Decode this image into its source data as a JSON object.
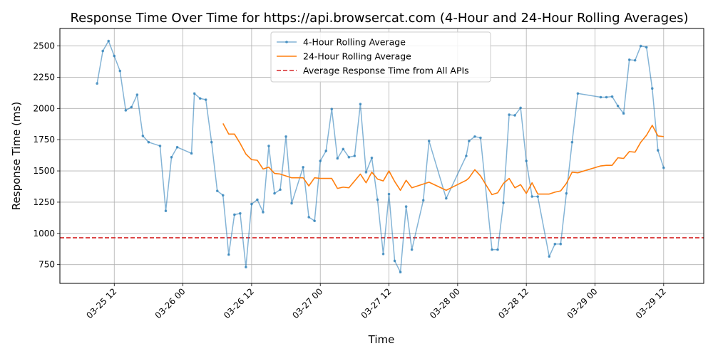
{
  "chart_data": {
    "type": "line",
    "title": "Response Time Over Time for https://api.browsercat.com (4-Hour and 24-Hour Rolling Averages)",
    "xlabel": "Time",
    "ylabel": "Response Time (ms)",
    "x_axis": {
      "type": "datetime",
      "range": [
        "2025-03-25T02:30",
        "2025-03-29T19:00"
      ],
      "ticks": [
        {
          "value": "2025-03-25T12:00",
          "label": "03-25 12"
        },
        {
          "value": "2025-03-26T00:00",
          "label": "03-26 00"
        },
        {
          "value": "2025-03-26T12:00",
          "label": "03-26 12"
        },
        {
          "value": "2025-03-27T00:00",
          "label": "03-27 00"
        },
        {
          "value": "2025-03-27T12:00",
          "label": "03-27 12"
        },
        {
          "value": "2025-03-28T00:00",
          "label": "03-28 00"
        },
        {
          "value": "2025-03-28T12:00",
          "label": "03-28 12"
        },
        {
          "value": "2025-03-29T00:00",
          "label": "03-29 00"
        },
        {
          "value": "2025-03-29T12:00",
          "label": "03-29 12"
        }
      ]
    },
    "y_axis": {
      "range": [
        600,
        2640
      ],
      "ticks": [
        750,
        1000,
        1250,
        1500,
        1750,
        2000,
        2250,
        2500
      ]
    },
    "grid": true,
    "legend": {
      "placement": "top-center",
      "entries": [
        "4-Hour Rolling Average",
        "24-Hour Rolling Average",
        "Average Response Time from All APIs"
      ]
    },
    "series": [
      {
        "name": "4-Hour Rolling Average",
        "color": "#1f77b4",
        "style": "line-with-markers",
        "points": [
          {
            "x": "2025-03-25T09:00",
            "y": 2200
          },
          {
            "x": "2025-03-25T10:00",
            "y": 2460
          },
          {
            "x": "2025-03-25T11:00",
            "y": 2540
          },
          {
            "x": "2025-03-25T12:00",
            "y": 2420
          },
          {
            "x": "2025-03-25T13:00",
            "y": 2300
          },
          {
            "x": "2025-03-25T14:00",
            "y": 1985
          },
          {
            "x": "2025-03-25T15:00",
            "y": 2010
          },
          {
            "x": "2025-03-25T16:00",
            "y": 2110
          },
          {
            "x": "2025-03-25T17:00",
            "y": 1780
          },
          {
            "x": "2025-03-25T18:00",
            "y": 1730
          },
          {
            "x": "2025-03-25T20:00",
            "y": 1700
          },
          {
            "x": "2025-03-25T21:00",
            "y": 1180
          },
          {
            "x": "2025-03-25T22:00",
            "y": 1610
          },
          {
            "x": "2025-03-25T23:00",
            "y": 1690
          },
          {
            "x": "2025-03-26T01:30",
            "y": 1640
          },
          {
            "x": "2025-03-26T02:00",
            "y": 2120
          },
          {
            "x": "2025-03-26T03:00",
            "y": 2080
          },
          {
            "x": "2025-03-26T04:00",
            "y": 2070
          },
          {
            "x": "2025-03-26T05:00",
            "y": 1730
          },
          {
            "x": "2025-03-26T06:00",
            "y": 1340
          },
          {
            "x": "2025-03-26T07:00",
            "y": 1305
          },
          {
            "x": "2025-03-26T08:00",
            "y": 830
          },
          {
            "x": "2025-03-26T09:00",
            "y": 1150
          },
          {
            "x": "2025-03-26T10:00",
            "y": 1160
          },
          {
            "x": "2025-03-26T11:00",
            "y": 730
          },
          {
            "x": "2025-03-26T12:00",
            "y": 1235
          },
          {
            "x": "2025-03-26T13:00",
            "y": 1270
          },
          {
            "x": "2025-03-26T14:00",
            "y": 1170
          },
          {
            "x": "2025-03-26T15:00",
            "y": 1700
          },
          {
            "x": "2025-03-26T16:00",
            "y": 1320
          },
          {
            "x": "2025-03-26T17:00",
            "y": 1350
          },
          {
            "x": "2025-03-26T18:00",
            "y": 1775
          },
          {
            "x": "2025-03-26T19:00",
            "y": 1240
          },
          {
            "x": "2025-03-26T21:00",
            "y": 1530
          },
          {
            "x": "2025-03-26T22:00",
            "y": 1130
          },
          {
            "x": "2025-03-26T23:00",
            "y": 1100
          },
          {
            "x": "2025-03-27T00:00",
            "y": 1580
          },
          {
            "x": "2025-03-27T01:00",
            "y": 1660
          },
          {
            "x": "2025-03-27T02:00",
            "y": 1995
          },
          {
            "x": "2025-03-27T03:00",
            "y": 1600
          },
          {
            "x": "2025-03-27T04:00",
            "y": 1675
          },
          {
            "x": "2025-03-27T05:00",
            "y": 1610
          },
          {
            "x": "2025-03-27T06:00",
            "y": 1620
          },
          {
            "x": "2025-03-27T07:00",
            "y": 2035
          },
          {
            "x": "2025-03-27T08:00",
            "y": 1490
          },
          {
            "x": "2025-03-27T09:00",
            "y": 1605
          },
          {
            "x": "2025-03-27T10:00",
            "y": 1270
          },
          {
            "x": "2025-03-27T11:00",
            "y": 835
          },
          {
            "x": "2025-03-27T12:00",
            "y": 1315
          },
          {
            "x": "2025-03-27T13:00",
            "y": 780
          },
          {
            "x": "2025-03-27T14:00",
            "y": 690
          },
          {
            "x": "2025-03-27T15:00",
            "y": 1215
          },
          {
            "x": "2025-03-27T16:00",
            "y": 870
          },
          {
            "x": "2025-03-27T18:00",
            "y": 1265
          },
          {
            "x": "2025-03-27T19:00",
            "y": 1740
          },
          {
            "x": "2025-03-27T22:00",
            "y": 1280
          },
          {
            "x": "2025-03-28T01:30",
            "y": 1620
          },
          {
            "x": "2025-03-28T02:00",
            "y": 1740
          },
          {
            "x": "2025-03-28T03:00",
            "y": 1775
          },
          {
            "x": "2025-03-28T04:00",
            "y": 1765
          },
          {
            "x": "2025-03-28T06:00",
            "y": 870
          },
          {
            "x": "2025-03-28T07:00",
            "y": 870
          },
          {
            "x": "2025-03-28T08:00",
            "y": 1245
          },
          {
            "x": "2025-03-28T09:00",
            "y": 1950
          },
          {
            "x": "2025-03-28T10:00",
            "y": 1945
          },
          {
            "x": "2025-03-28T11:00",
            "y": 2005
          },
          {
            "x": "2025-03-28T12:00",
            "y": 1580
          },
          {
            "x": "2025-03-28T13:00",
            "y": 1295
          },
          {
            "x": "2025-03-28T14:00",
            "y": 1295
          },
          {
            "x": "2025-03-28T16:00",
            "y": 815
          },
          {
            "x": "2025-03-28T17:00",
            "y": 915
          },
          {
            "x": "2025-03-28T18:00",
            "y": 915
          },
          {
            "x": "2025-03-28T19:00",
            "y": 1320
          },
          {
            "x": "2025-03-28T20:00",
            "y": 1730
          },
          {
            "x": "2025-03-28T21:00",
            "y": 2120
          },
          {
            "x": "2025-03-29T01:00",
            "y": 2090
          },
          {
            "x": "2025-03-29T02:00",
            "y": 2090
          },
          {
            "x": "2025-03-29T03:00",
            "y": 2095
          },
          {
            "x": "2025-03-29T04:00",
            "y": 2020
          },
          {
            "x": "2025-03-29T05:00",
            "y": 1960
          },
          {
            "x": "2025-03-29T06:00",
            "y": 2390
          },
          {
            "x": "2025-03-29T07:00",
            "y": 2385
          },
          {
            "x": "2025-03-29T08:00",
            "y": 2500
          },
          {
            "x": "2025-03-29T09:00",
            "y": 2490
          },
          {
            "x": "2025-03-29T10:00",
            "y": 2160
          },
          {
            "x": "2025-03-29T11:00",
            "y": 1665
          },
          {
            "x": "2025-03-29T12:00",
            "y": 1525
          }
        ]
      },
      {
        "name": "24-Hour Rolling Average",
        "color": "#ff7f0e",
        "style": "line",
        "points": [
          {
            "x": "2025-03-26T07:00",
            "y": 1880
          },
          {
            "x": "2025-03-26T08:00",
            "y": 1795
          },
          {
            "x": "2025-03-26T09:00",
            "y": 1795
          },
          {
            "x": "2025-03-26T10:00",
            "y": 1720
          },
          {
            "x": "2025-03-26T11:00",
            "y": 1635
          },
          {
            "x": "2025-03-26T12:00",
            "y": 1590
          },
          {
            "x": "2025-03-26T13:00",
            "y": 1585
          },
          {
            "x": "2025-03-26T14:00",
            "y": 1515
          },
          {
            "x": "2025-03-26T15:00",
            "y": 1530
          },
          {
            "x": "2025-03-26T16:00",
            "y": 1480
          },
          {
            "x": "2025-03-26T17:00",
            "y": 1475
          },
          {
            "x": "2025-03-26T18:00",
            "y": 1460
          },
          {
            "x": "2025-03-26T19:00",
            "y": 1445
          },
          {
            "x": "2025-03-26T21:00",
            "y": 1445
          },
          {
            "x": "2025-03-26T22:00",
            "y": 1380
          },
          {
            "x": "2025-03-26T23:00",
            "y": 1445
          },
          {
            "x": "2025-03-27T00:00",
            "y": 1440
          },
          {
            "x": "2025-03-27T01:00",
            "y": 1440
          },
          {
            "x": "2025-03-27T02:00",
            "y": 1440
          },
          {
            "x": "2025-03-27T03:00",
            "y": 1360
          },
          {
            "x": "2025-03-27T04:00",
            "y": 1370
          },
          {
            "x": "2025-03-27T05:00",
            "y": 1365
          },
          {
            "x": "2025-03-27T06:00",
            "y": 1420
          },
          {
            "x": "2025-03-27T07:00",
            "y": 1475
          },
          {
            "x": "2025-03-27T08:00",
            "y": 1405
          },
          {
            "x": "2025-03-27T09:00",
            "y": 1490
          },
          {
            "x": "2025-03-27T10:00",
            "y": 1435
          },
          {
            "x": "2025-03-27T11:00",
            "y": 1420
          },
          {
            "x": "2025-03-27T12:00",
            "y": 1500
          },
          {
            "x": "2025-03-27T13:00",
            "y": 1415
          },
          {
            "x": "2025-03-27T14:00",
            "y": 1345
          },
          {
            "x": "2025-03-27T15:00",
            "y": 1425
          },
          {
            "x": "2025-03-27T16:00",
            "y": 1365
          },
          {
            "x": "2025-03-27T18:00",
            "y": 1395
          },
          {
            "x": "2025-03-27T19:00",
            "y": 1410
          },
          {
            "x": "2025-03-27T22:00",
            "y": 1345
          },
          {
            "x": "2025-03-28T01:30",
            "y": 1425
          },
          {
            "x": "2025-03-28T02:00",
            "y": 1445
          },
          {
            "x": "2025-03-28T03:00",
            "y": 1510
          },
          {
            "x": "2025-03-28T04:00",
            "y": 1460
          },
          {
            "x": "2025-03-28T06:00",
            "y": 1310
          },
          {
            "x": "2025-03-28T07:00",
            "y": 1325
          },
          {
            "x": "2025-03-28T08:00",
            "y": 1400
          },
          {
            "x": "2025-03-28T09:00",
            "y": 1440
          },
          {
            "x": "2025-03-28T10:00",
            "y": 1365
          },
          {
            "x": "2025-03-28T11:00",
            "y": 1390
          },
          {
            "x": "2025-03-28T12:00",
            "y": 1320
          },
          {
            "x": "2025-03-28T13:00",
            "y": 1405
          },
          {
            "x": "2025-03-28T14:00",
            "y": 1315
          },
          {
            "x": "2025-03-28T16:00",
            "y": 1315
          },
          {
            "x": "2025-03-28T17:00",
            "y": 1330
          },
          {
            "x": "2025-03-28T18:00",
            "y": 1340
          },
          {
            "x": "2025-03-28T19:00",
            "y": 1400
          },
          {
            "x": "2025-03-28T20:00",
            "y": 1490
          },
          {
            "x": "2025-03-28T21:00",
            "y": 1485
          },
          {
            "x": "2025-03-29T01:00",
            "y": 1540
          },
          {
            "x": "2025-03-29T02:00",
            "y": 1545
          },
          {
            "x": "2025-03-29T03:00",
            "y": 1545
          },
          {
            "x": "2025-03-29T04:00",
            "y": 1605
          },
          {
            "x": "2025-03-29T05:00",
            "y": 1600
          },
          {
            "x": "2025-03-29T06:00",
            "y": 1655
          },
          {
            "x": "2025-03-29T07:00",
            "y": 1650
          },
          {
            "x": "2025-03-29T08:00",
            "y": 1730
          },
          {
            "x": "2025-03-29T09:00",
            "y": 1785
          },
          {
            "x": "2025-03-29T10:00",
            "y": 1865
          },
          {
            "x": "2025-03-29T11:00",
            "y": 1780
          },
          {
            "x": "2025-03-29T12:00",
            "y": 1775
          }
        ]
      }
    ],
    "reference_lines": [
      {
        "name": "Average Response Time from All APIs",
        "y": 965,
        "color": "#d62728",
        "style": "dashed"
      }
    ]
  }
}
